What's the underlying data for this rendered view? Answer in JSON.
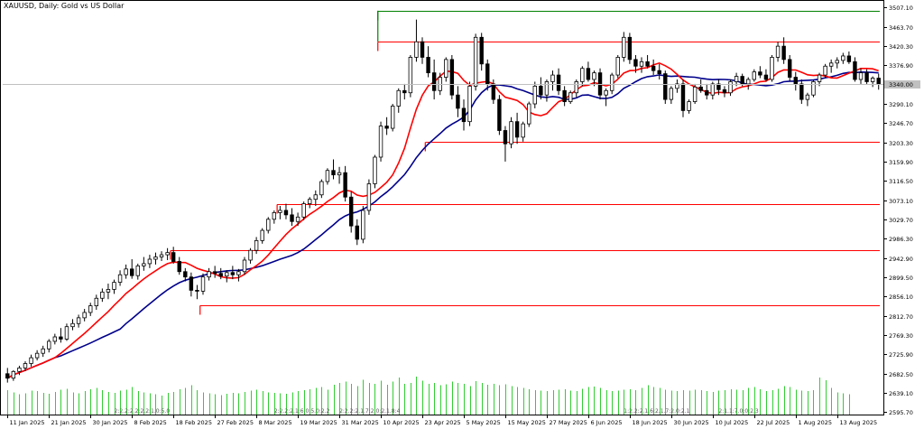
{
  "chart_data": {
    "type": "candlestick",
    "title": "XAUUSD, Daily:  Gold vs US Dollar",
    "current_price_label": "3340.00",
    "ylim": [
      2590,
      3520
    ],
    "y_ticks": [
      "3507.10",
      "3463.70",
      "3420.30",
      "3376.90",
      "3333.50",
      "3290.10",
      "3246.70",
      "3203.30",
      "3159.90",
      "3116.50",
      "3073.10",
      "3029.70",
      "2986.30",
      "2942.90",
      "2899.50",
      "2856.10",
      "2812.70",
      "2769.30",
      "2725.90",
      "2682.50",
      "2639.10",
      "2595.70"
    ],
    "x_ticks": [
      "11 Jan 2025",
      "21 Jan 2025",
      "30 Jan 2025",
      "8 Feb 2025",
      "18 Feb 2025",
      "27 Feb 2025",
      "8 Mar 2025",
      "19 Mar 2025",
      "31 Mar 2025",
      "10 Apr 2025",
      "23 Apr 2025",
      "5 May 2025",
      "15 May 2025",
      "27 May 2025",
      "6 Jun 2025",
      "18 Jun 2025",
      "30 Jun 2025",
      "10 Jul 2025",
      "22 Jul 2025",
      "1 Aug 2025",
      "13 Aug 2025"
    ],
    "x_tick_index": [
      0,
      7,
      14,
      21,
      28,
      35,
      42,
      49,
      56,
      63,
      70,
      77,
      84,
      91,
      98,
      105,
      112,
      119,
      126,
      133,
      140
    ],
    "candles": [
      [
        2682,
        2695,
        2662,
        2672
      ],
      [
        2672,
        2690,
        2666,
        2687
      ],
      [
        2687,
        2700,
        2679,
        2695
      ],
      [
        2695,
        2710,
        2688,
        2705
      ],
      [
        2705,
        2725,
        2698,
        2718
      ],
      [
        2718,
        2735,
        2712,
        2728
      ],
      [
        2728,
        2745,
        2720,
        2738
      ],
      [
        2738,
        2760,
        2730,
        2755
      ],
      [
        2755,
        2772,
        2748,
        2765
      ],
      [
        2765,
        2785,
        2752,
        2760
      ],
      [
        2760,
        2795,
        2756,
        2788
      ],
      [
        2788,
        2805,
        2780,
        2795
      ],
      [
        2795,
        2815,
        2786,
        2808
      ],
      [
        2808,
        2828,
        2800,
        2820
      ],
      [
        2820,
        2842,
        2812,
        2835
      ],
      [
        2835,
        2860,
        2826,
        2852
      ],
      [
        2852,
        2874,
        2844,
        2866
      ],
      [
        2866,
        2885,
        2850,
        2872
      ],
      [
        2872,
        2894,
        2862,
        2888
      ],
      [
        2888,
        2915,
        2880,
        2905
      ],
      [
        2905,
        2928,
        2896,
        2918
      ],
      [
        2918,
        2940,
        2896,
        2903
      ],
      [
        2903,
        2930,
        2894,
        2925
      ],
      [
        2925,
        2945,
        2914,
        2930
      ],
      [
        2930,
        2950,
        2920,
        2940
      ],
      [
        2940,
        2955,
        2928,
        2945
      ],
      [
        2945,
        2958,
        2936,
        2950
      ],
      [
        2950,
        2965,
        2938,
        2955
      ],
      [
        2955,
        2968,
        2930,
        2935
      ],
      [
        2935,
        2945,
        2905,
        2912
      ],
      [
        2912,
        2920,
        2890,
        2900
      ],
      [
        2900,
        2910,
        2856,
        2870
      ],
      [
        2870,
        2882,
        2850,
        2868
      ],
      [
        2868,
        2908,
        2860,
        2900
      ],
      [
        2900,
        2920,
        2892,
        2912
      ],
      [
        2912,
        2925,
        2898,
        2908
      ],
      [
        2908,
        2920,
        2895,
        2902
      ],
      [
        2902,
        2915,
        2888,
        2910
      ],
      [
        2910,
        2925,
        2895,
        2905
      ],
      [
        2905,
        2918,
        2890,
        2912
      ],
      [
        2912,
        2945,
        2905,
        2938
      ],
      [
        2938,
        2965,
        2930,
        2960
      ],
      [
        2960,
        2990,
        2952,
        2982
      ],
      [
        2982,
        3010,
        2975,
        3005
      ],
      [
        3005,
        3035,
        2998,
        3030
      ],
      [
        3030,
        3050,
        3020,
        3045
      ],
      [
        3045,
        3060,
        3030,
        3050
      ],
      [
        3050,
        3065,
        3030,
        3040
      ],
      [
        3040,
        3055,
        3015,
        3025
      ],
      [
        3025,
        3045,
        3015,
        3035
      ],
      [
        3035,
        3070,
        3028,
        3065
      ],
      [
        3065,
        3080,
        3055,
        3075
      ],
      [
        3075,
        3095,
        3060,
        3085
      ],
      [
        3085,
        3120,
        3078,
        3115
      ],
      [
        3115,
        3145,
        3108,
        3140
      ],
      [
        3140,
        3165,
        3120,
        3130
      ],
      [
        3130,
        3148,
        3110,
        3135
      ],
      [
        3135,
        3150,
        3070,
        3080
      ],
      [
        3080,
        3092,
        3000,
        3015
      ],
      [
        3015,
        3030,
        2972,
        2985
      ],
      [
        2985,
        3060,
        2976,
        3050
      ],
      [
        3050,
        3120,
        3040,
        3110
      ],
      [
        3110,
        3175,
        3100,
        3170
      ],
      [
        3170,
        3250,
        3160,
        3240
      ],
      [
        3240,
        3260,
        3220,
        3235
      ],
      [
        3235,
        3290,
        3228,
        3285
      ],
      [
        3285,
        3325,
        3270,
        3320
      ],
      [
        3320,
        3335,
        3300,
        3315
      ],
      [
        3315,
        3400,
        3305,
        3395
      ],
      [
        3395,
        3480,
        3385,
        3430
      ],
      [
        3430,
        3440,
        3380,
        3395
      ],
      [
        3395,
        3420,
        3350,
        3360
      ],
      [
        3360,
        3390,
        3300,
        3320
      ],
      [
        3320,
        3360,
        3310,
        3350
      ],
      [
        3350,
        3395,
        3340,
        3390
      ],
      [
        3390,
        3400,
        3300,
        3310
      ],
      [
        3310,
        3330,
        3260,
        3280
      ],
      [
        3280,
        3300,
        3230,
        3250
      ],
      [
        3250,
        3340,
        3240,
        3330
      ],
      [
        3330,
        3448,
        3320,
        3440
      ],
      [
        3440,
        3450,
        3365,
        3380
      ],
      [
        3380,
        3390,
        3320,
        3335
      ],
      [
        3335,
        3345,
        3290,
        3300
      ],
      [
        3300,
        3310,
        3220,
        3230
      ],
      [
        3230,
        3240,
        3160,
        3200
      ],
      [
        3200,
        3260,
        3190,
        3250
      ],
      [
        3250,
        3270,
        3200,
        3215
      ],
      [
        3215,
        3250,
        3205,
        3245
      ],
      [
        3245,
        3295,
        3238,
        3290
      ],
      [
        3290,
        3340,
        3280,
        3330
      ],
      [
        3330,
        3350,
        3300,
        3310
      ],
      [
        3310,
        3345,
        3295,
        3340
      ],
      [
        3340,
        3365,
        3320,
        3355
      ],
      [
        3355,
        3370,
        3310,
        3320
      ],
      [
        3320,
        3330,
        3285,
        3295
      ],
      [
        3295,
        3320,
        3290,
        3315
      ],
      [
        3315,
        3345,
        3305,
        3340
      ],
      [
        3340,
        3375,
        3330,
        3370
      ],
      [
        3370,
        3385,
        3340,
        3345
      ],
      [
        3345,
        3365,
        3330,
        3360
      ],
      [
        3360,
        3370,
        3300,
        3310
      ],
      [
        3310,
        3325,
        3285,
        3320
      ],
      [
        3320,
        3360,
        3312,
        3355
      ],
      [
        3355,
        3400,
        3348,
        3395
      ],
      [
        3395,
        3452,
        3385,
        3440
      ],
      [
        3440,
        3450,
        3380,
        3390
      ],
      [
        3390,
        3400,
        3360,
        3375
      ],
      [
        3375,
        3395,
        3360,
        3385
      ],
      [
        3385,
        3400,
        3370,
        3375
      ],
      [
        3375,
        3390,
        3355,
        3365
      ],
      [
        3365,
        3380,
        3345,
        3358
      ],
      [
        3358,
        3365,
        3290,
        3300
      ],
      [
        3300,
        3330,
        3290,
        3325
      ],
      [
        3325,
        3345,
        3315,
        3335
      ],
      [
        3335,
        3345,
        3260,
        3275
      ],
      [
        3275,
        3300,
        3268,
        3295
      ],
      [
        3295,
        3335,
        3290,
        3328
      ],
      [
        3328,
        3345,
        3315,
        3320
      ],
      [
        3320,
        3335,
        3300,
        3310
      ],
      [
        3310,
        3340,
        3300,
        3335
      ],
      [
        3335,
        3345,
        3310,
        3322
      ],
      [
        3322,
        3330,
        3305,
        3315
      ],
      [
        3315,
        3345,
        3308,
        3340
      ],
      [
        3340,
        3360,
        3330,
        3352
      ],
      [
        3352,
        3358,
        3330,
        3335
      ],
      [
        3335,
        3350,
        3322,
        3345
      ],
      [
        3345,
        3368,
        3340,
        3362
      ],
      [
        3362,
        3375,
        3348,
        3355
      ],
      [
        3355,
        3368,
        3340,
        3345
      ],
      [
        3345,
        3400,
        3340,
        3395
      ],
      [
        3395,
        3430,
        3385,
        3420
      ],
      [
        3420,
        3440,
        3380,
        3390
      ],
      [
        3390,
        3400,
        3340,
        3350
      ],
      [
        3350,
        3362,
        3320,
        3335
      ],
      [
        3335,
        3345,
        3290,
        3300
      ],
      [
        3300,
        3315,
        3285,
        3310
      ],
      [
        3310,
        3345,
        3305,
        3340
      ],
      [
        3340,
        3360,
        3330,
        3355
      ],
      [
        3355,
        3380,
        3348,
        3375
      ],
      [
        3375,
        3390,
        3360,
        3382
      ],
      [
        3382,
        3395,
        3370,
        3388
      ],
      [
        3388,
        3405,
        3380,
        3398
      ],
      [
        3398,
        3408,
        3380,
        3385
      ],
      [
        3385,
        3395,
        3340,
        3345
      ],
      [
        3345,
        3370,
        3335,
        3360
      ],
      [
        3360,
        3368,
        3335,
        3340
      ],
      [
        3340,
        3352,
        3328,
        3348
      ],
      [
        3348,
        3358,
        3322,
        3334
      ]
    ],
    "ma_fast_color": "#ff0000",
    "ma_slow_color": "#00008b",
    "levels": [
      {
        "price": 3500,
        "x_from": 63,
        "color": "#008000"
      },
      {
        "price": 3430,
        "x_from": 63,
        "color": "#ff0000"
      },
      {
        "price": 3205,
        "x_from": 71,
        "color": "#ff0000"
      },
      {
        "price": 3065,
        "x_from": 46,
        "color": "#ff0000"
      },
      {
        "price": 2960,
        "x_from": 28,
        "color": "#ff0000"
      },
      {
        "price": 2836,
        "x_from": 33,
        "color": "#ff0000"
      }
    ],
    "volume_color": "#32cd32",
    "volume": [
      46,
      42,
      38,
      40,
      45,
      44,
      41,
      39,
      43,
      47,
      49,
      42,
      40,
      44,
      48,
      50,
      46,
      43,
      41,
      45,
      47,
      52,
      44,
      42,
      40,
      38,
      36,
      41,
      43,
      48,
      50,
      55,
      46,
      42,
      40,
      38,
      37,
      39,
      41,
      40,
      43,
      45,
      47,
      44,
      42,
      41,
      40,
      39,
      42,
      44,
      46,
      48,
      50,
      52,
      47,
      56,
      60,
      62,
      58,
      54,
      66,
      60,
      58,
      64,
      56,
      62,
      70,
      58,
      60,
      72,
      64,
      58,
      60,
      55,
      57,
      62,
      60,
      58,
      54,
      63,
      60,
      56,
      58,
      55,
      57,
      54,
      52,
      50,
      48,
      46,
      45,
      44,
      46,
      47,
      48,
      45,
      44,
      49,
      52,
      53,
      50,
      46,
      44,
      45,
      47,
      48,
      46,
      50,
      55,
      52,
      50,
      47,
      45,
      44,
      46,
      45,
      47,
      46,
      44,
      43,
      45,
      46,
      48,
      47,
      46,
      50,
      52,
      48,
      44,
      46,
      49,
      54,
      52,
      47,
      45,
      44,
      46,
      70,
      65,
      50,
      42,
      40,
      38
    ],
    "volume_labels": [
      {
        "index": 18,
        "text": "2:2.2:2.2:2.2:1.0:5.0"
      },
      {
        "index": 45,
        "text": "2:2.2:2.1:6.0:5.0:2.2"
      },
      {
        "index": 56,
        "text": "2:2.2:2.1.7:2.0:2.1.8:4"
      },
      {
        "index": 104,
        "text": "1:2.2:2.1.6:2.1.7:2.0:2.1"
      },
      {
        "index": 120,
        "text": "2:1.1:7.0:0:2.3"
      }
    ]
  }
}
